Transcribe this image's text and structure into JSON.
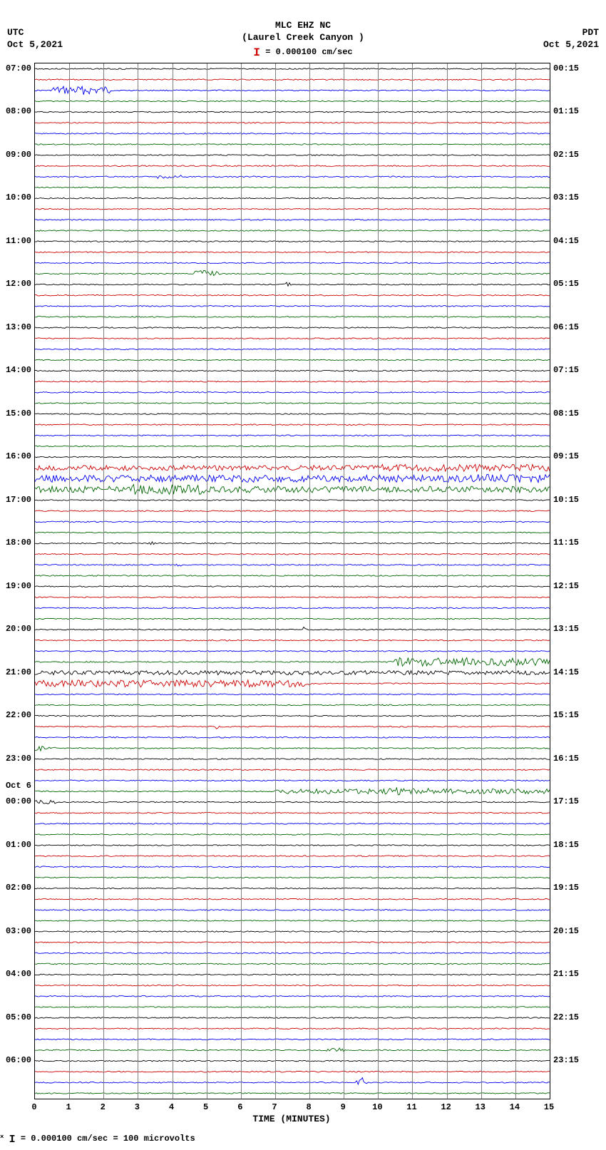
{
  "header": {
    "station": "MLC EHZ NC",
    "location": "(Laurel Creek Canyon )",
    "scale_text": "= 0.000100 cm/sec"
  },
  "tz_left": {
    "zone": "UTC",
    "date": "Oct 5,2021"
  },
  "tz_right": {
    "zone": "PDT",
    "date": "Oct 5,2021"
  },
  "x_axis": {
    "label": "TIME (MINUTES)",
    "min": 0,
    "max": 15,
    "ticks": [
      0,
      1,
      2,
      3,
      4,
      5,
      6,
      7,
      8,
      9,
      10,
      11,
      12,
      13,
      14,
      15
    ]
  },
  "footer": {
    "text": "= 0.000100 cm/sec =   100 microvolts"
  },
  "colors": {
    "sequence": [
      "#000000",
      "#cc0000",
      "#0000ee",
      "#006600"
    ],
    "grid": "#808080",
    "background": "#ffffff",
    "text": "#000000"
  },
  "plot": {
    "trace_count": 96,
    "baseline_noise": 0.8,
    "line_width": 0.9,
    "left_hour_labels": [
      {
        "idx": 0,
        "text": "07:00"
      },
      {
        "idx": 4,
        "text": "08:00"
      },
      {
        "idx": 8,
        "text": "09:00"
      },
      {
        "idx": 12,
        "text": "10:00"
      },
      {
        "idx": 16,
        "text": "11:00"
      },
      {
        "idx": 20,
        "text": "12:00"
      },
      {
        "idx": 24,
        "text": "13:00"
      },
      {
        "idx": 28,
        "text": "14:00"
      },
      {
        "idx": 32,
        "text": "15:00"
      },
      {
        "idx": 36,
        "text": "16:00"
      },
      {
        "idx": 40,
        "text": "17:00"
      },
      {
        "idx": 44,
        "text": "18:00"
      },
      {
        "idx": 48,
        "text": "19:00"
      },
      {
        "idx": 52,
        "text": "20:00"
      },
      {
        "idx": 56,
        "text": "21:00"
      },
      {
        "idx": 60,
        "text": "22:00"
      },
      {
        "idx": 64,
        "text": "23:00"
      },
      {
        "idx": 67,
        "text": "Oct 6"
      },
      {
        "idx": 68,
        "text": "00:00"
      },
      {
        "idx": 72,
        "text": "01:00"
      },
      {
        "idx": 76,
        "text": "02:00"
      },
      {
        "idx": 80,
        "text": "03:00"
      },
      {
        "idx": 84,
        "text": "04:00"
      },
      {
        "idx": 88,
        "text": "05:00"
      },
      {
        "idx": 92,
        "text": "06:00"
      }
    ],
    "right_hour_labels": [
      {
        "idx": 0,
        "text": "00:15"
      },
      {
        "idx": 4,
        "text": "01:15"
      },
      {
        "idx": 8,
        "text": "02:15"
      },
      {
        "idx": 12,
        "text": "03:15"
      },
      {
        "idx": 16,
        "text": "04:15"
      },
      {
        "idx": 20,
        "text": "05:15"
      },
      {
        "idx": 24,
        "text": "06:15"
      },
      {
        "idx": 28,
        "text": "07:15"
      },
      {
        "idx": 32,
        "text": "08:15"
      },
      {
        "idx": 36,
        "text": "09:15"
      },
      {
        "idx": 40,
        "text": "10:15"
      },
      {
        "idx": 44,
        "text": "11:15"
      },
      {
        "idx": 48,
        "text": "12:15"
      },
      {
        "idx": 52,
        "text": "13:15"
      },
      {
        "idx": 56,
        "text": "14:15"
      },
      {
        "idx": 60,
        "text": "15:15"
      },
      {
        "idx": 64,
        "text": "16:15"
      },
      {
        "idx": 68,
        "text": "17:15"
      },
      {
        "idx": 72,
        "text": "18:15"
      },
      {
        "idx": 76,
        "text": "19:15"
      },
      {
        "idx": 80,
        "text": "20:15"
      },
      {
        "idx": 84,
        "text": "21:15"
      },
      {
        "idx": 88,
        "text": "22:15"
      },
      {
        "idx": 92,
        "text": "23:15"
      }
    ],
    "events": [
      {
        "trace": 2,
        "start_min": 0.5,
        "end_min": 2.2,
        "amp": 6,
        "type": "burst"
      },
      {
        "trace": 10,
        "start_min": 3.5,
        "end_min": 4.3,
        "amp": 2.5,
        "type": "burst"
      },
      {
        "trace": 19,
        "start_min": 4.6,
        "end_min": 5.4,
        "amp": 5,
        "type": "burst"
      },
      {
        "trace": 20,
        "start_min": 7.2,
        "end_min": 7.6,
        "amp": 5,
        "type": "spike"
      },
      {
        "trace": 37,
        "start_min": 0,
        "end_min": 15,
        "amp": 3.5,
        "type": "elevated"
      },
      {
        "trace": 37,
        "start_min": 10,
        "end_min": 15,
        "amp": 5,
        "type": "burst"
      },
      {
        "trace": 38,
        "start_min": 0,
        "end_min": 15,
        "amp": 5,
        "type": "elevated"
      },
      {
        "trace": 38,
        "start_min": 12.5,
        "end_min": 15,
        "amp": 6,
        "type": "burst"
      },
      {
        "trace": 39,
        "start_min": 0,
        "end_min": 15,
        "amp": 4.5,
        "type": "elevated"
      },
      {
        "trace": 39,
        "start_min": 2.8,
        "end_min": 5,
        "amp": 7,
        "type": "burst"
      },
      {
        "trace": 44,
        "start_min": 3.2,
        "end_min": 3.6,
        "amp": 3,
        "type": "spike"
      },
      {
        "trace": 46,
        "start_min": 4.0,
        "end_min": 4.4,
        "amp": 3,
        "type": "spike"
      },
      {
        "trace": 52,
        "start_min": 7.7,
        "end_min": 8.0,
        "amp": 4,
        "type": "spike"
      },
      {
        "trace": 55,
        "start_min": 10.5,
        "end_min": 15,
        "amp": 6,
        "type": "burst"
      },
      {
        "trace": 56,
        "start_min": 0,
        "end_min": 15,
        "amp": 3,
        "type": "elevated"
      },
      {
        "trace": 57,
        "start_min": 0,
        "end_min": 8,
        "amp": 5,
        "type": "burst"
      },
      {
        "trace": 57,
        "start_min": 5.2,
        "end_min": 5.4,
        "amp": 8,
        "type": "spike"
      },
      {
        "trace": 61,
        "start_min": 5.2,
        "end_min": 5.4,
        "amp": 4,
        "type": "spike"
      },
      {
        "trace": 63,
        "start_min": 0,
        "end_min": 0.6,
        "amp": 4,
        "type": "burst"
      },
      {
        "trace": 67,
        "start_min": 7,
        "end_min": 15,
        "amp": 3.5,
        "type": "burst"
      },
      {
        "trace": 67,
        "start_min": 10,
        "end_min": 11.5,
        "amp": 5,
        "type": "burst"
      },
      {
        "trace": 68,
        "start_min": 0,
        "end_min": 0.6,
        "amp": 3,
        "type": "burst"
      },
      {
        "trace": 91,
        "start_min": 8.5,
        "end_min": 9.0,
        "amp": 3,
        "type": "burst"
      },
      {
        "trace": 94,
        "start_min": 9.3,
        "end_min": 9.7,
        "amp": 9,
        "type": "spike"
      }
    ]
  }
}
